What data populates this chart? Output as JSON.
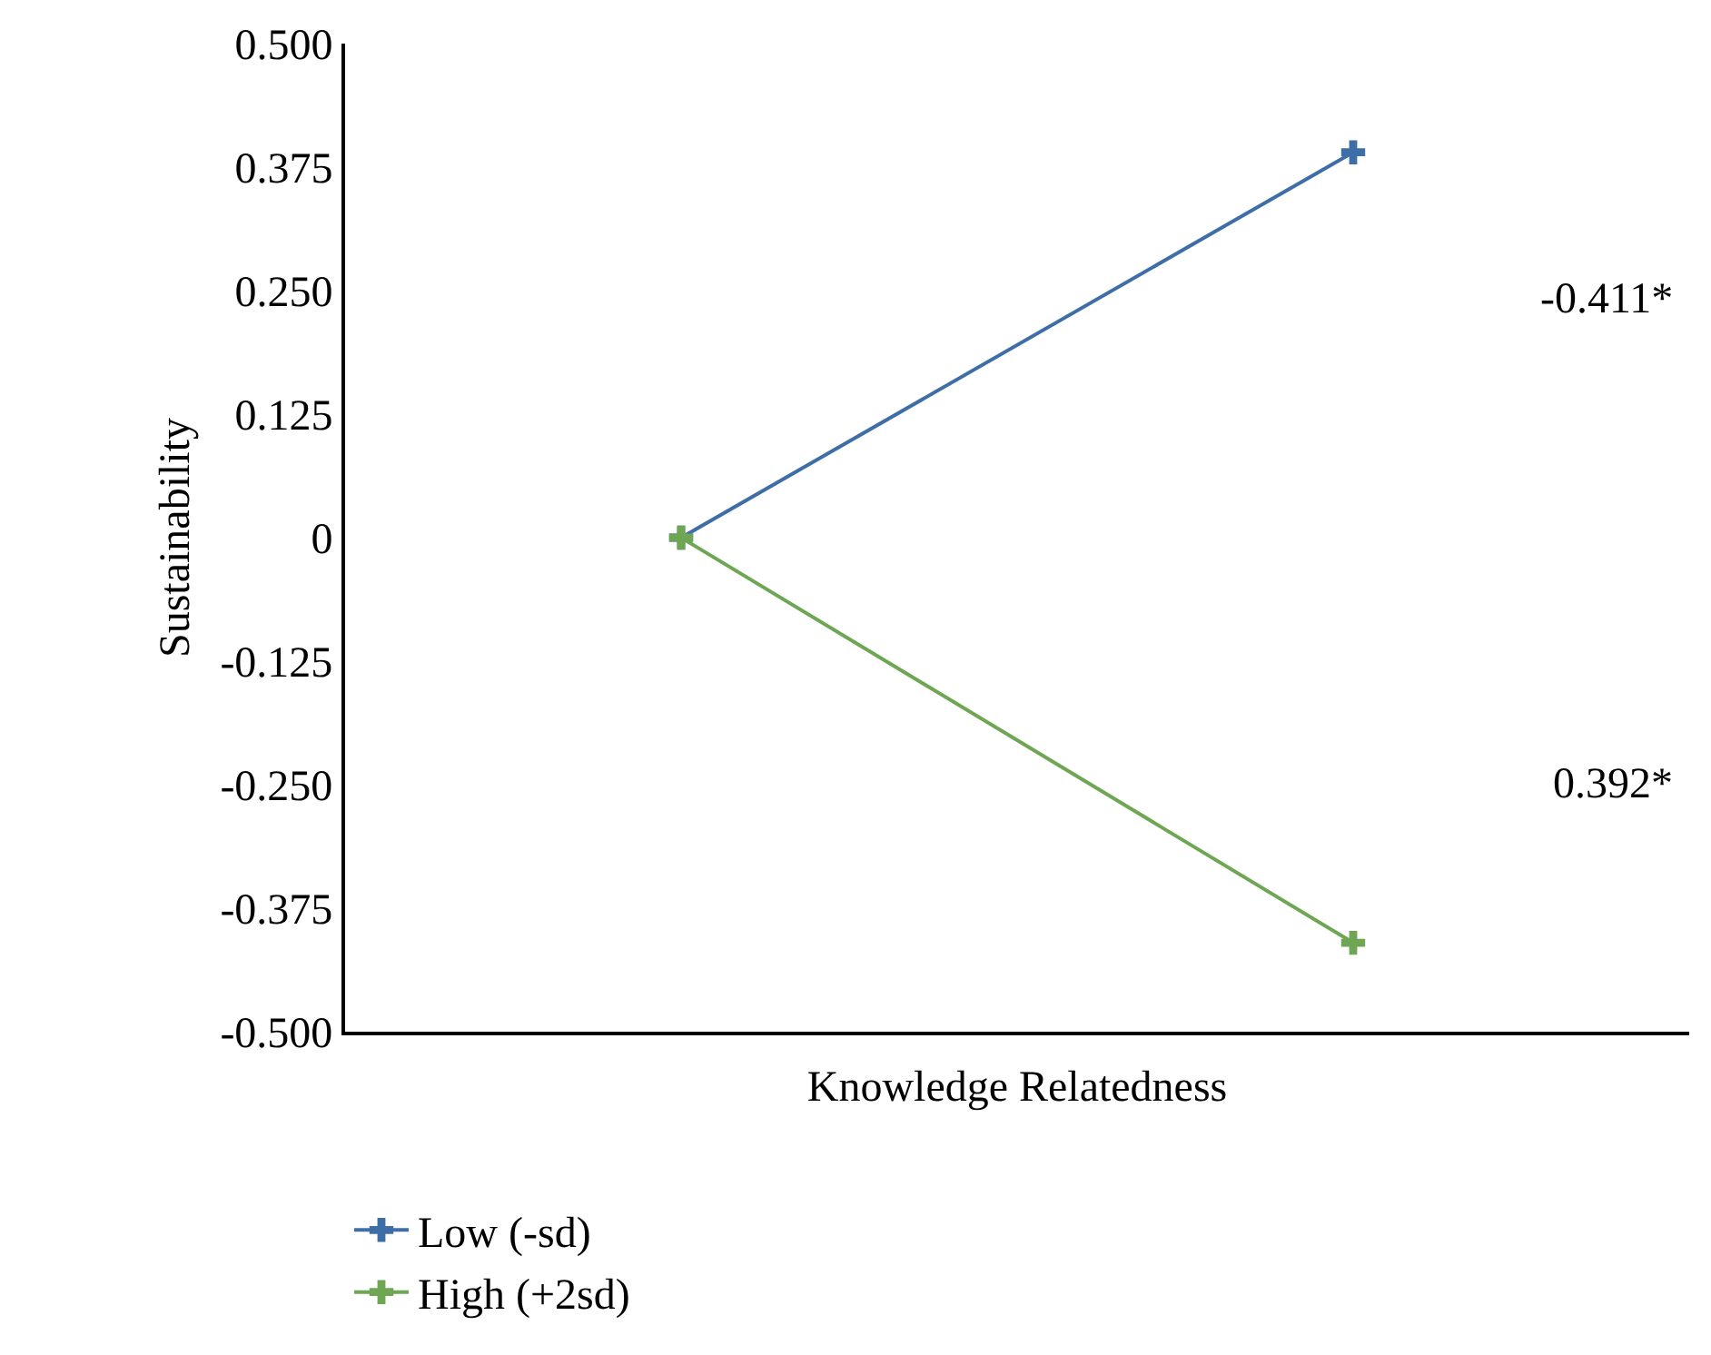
{
  "chart_data": {
    "type": "line",
    "xlabel": "Knowledge Relatedness",
    "ylabel": "Sustainability",
    "categories": [
      null,
      null
    ],
    "series": [
      {
        "name": "Low (-sd)",
        "color": "#3e6ea6",
        "values": [
          0,
          0.39
        ]
      },
      {
        "name": "High (+2sd)",
        "color": "#6fa654",
        "values": [
          0,
          -0.41
        ]
      }
    ],
    "annotations": [
      "-0.411*",
      "0.392*"
    ],
    "ylim": [
      -0.5,
      0.5
    ],
    "yticks": [
      {
        "value": -0.5,
        "label": "-0.500"
      },
      {
        "value": -0.375,
        "label": "-0.375"
      },
      {
        "value": -0.25,
        "label": "-0.250"
      },
      {
        "value": -0.125,
        "label": "-0.125"
      },
      0,
      {
        "value": 0.125,
        "label": "0.125"
      },
      {
        "value": 0.25,
        "label": "0.250"
      },
      {
        "value": 0.375,
        "label": "0.375"
      },
      {
        "value": 0.5,
        "label": "0.500"
      }
    ],
    "grid": false,
    "legend": "bottom",
    "marker": "cross",
    "line_style": "solid"
  }
}
